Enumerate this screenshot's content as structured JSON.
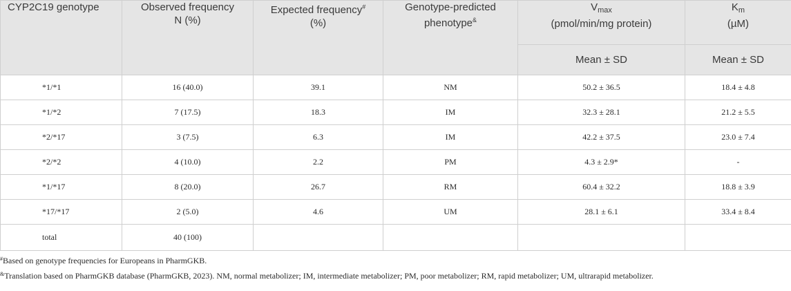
{
  "header": {
    "col1": "CYP2C19 genotype",
    "col2_line1": "Observed frequency",
    "col2_line2": "N (%)",
    "col3_line1": "Expected frequency",
    "col3_mark": "#",
    "col3_line2": "(%)",
    "col4_line1": "Genotype-predicted",
    "col4_line2": "phenotype",
    "col4_mark": "&",
    "col5_main": "V",
    "col5_sub": "max",
    "col5_line2": "(pmol/min/mg protein)",
    "col6_main": "K",
    "col6_sub": "m",
    "col6_line2": "(µM)",
    "mean_sd_1": "Mean ± SD",
    "mean_sd_2": "Mean ± SD"
  },
  "rows": [
    {
      "genotype": "*1/*1",
      "observed": "16 (40.0)",
      "expected": "39.1",
      "phenotype": "NM",
      "vmax": "50.2 ± 36.5",
      "km": "18.4 ± 4.8"
    },
    {
      "genotype": "*1/*2",
      "observed": "7 (17.5)",
      "expected": "18.3",
      "phenotype": "IM",
      "vmax": "32.3 ± 28.1",
      "km": "21.2 ± 5.5"
    },
    {
      "genotype": "*2/*17",
      "observed": "3 (7.5)",
      "expected": "6.3",
      "phenotype": "IM",
      "vmax": "42.2 ± 37.5",
      "km": "23.0 ± 7.4"
    },
    {
      "genotype": "*2/*2",
      "observed": "4 (10.0)",
      "expected": "2.2",
      "phenotype": "PM",
      "vmax": "4.3 ± 2.9*",
      "km": "-"
    },
    {
      "genotype": "*1/*17",
      "observed": "8 (20.0)",
      "expected": "26.7",
      "phenotype": "RM",
      "vmax": "60.4 ± 32.2",
      "km": "18.8 ± 3.9"
    },
    {
      "genotype": "*17/*17",
      "observed": "2 (5.0)",
      "expected": "4.6",
      "phenotype": "UM",
      "vmax": "28.1 ± 6.1",
      "km": "33.4 ± 8.4"
    },
    {
      "genotype": "total",
      "observed": "40 (100)",
      "expected": "",
      "phenotype": "",
      "vmax": "",
      "km": ""
    }
  ],
  "footnotes": {
    "fn1_mark": "#",
    "fn1_text": "Based on genotype frequencies for Europeans in PharmGKB.",
    "fn2_mark": "&",
    "fn2_text": "Translation based on PharmGKB database (PharmGKB, 2023). NM, normal metabolizer; IM, intermediate metabolizer; PM, poor metabolizer; RM, rapid metabolizer; UM, ultrarapid metabolizer."
  }
}
